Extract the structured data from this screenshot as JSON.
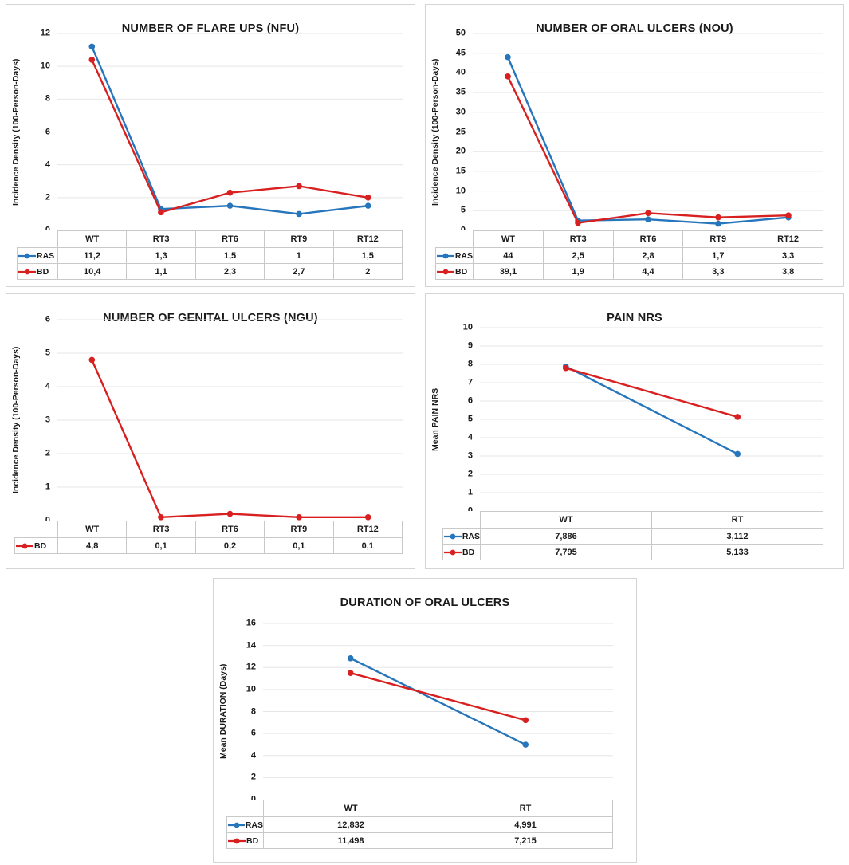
{
  "figure": {
    "description_titles": [
      "NUMBER OF FLARE UPS (NFU)",
      "NUMBER OF ORAL ULCERS (NOU)",
      "NUMBER OF GENITAL ULCERS (NGU)",
      "PAIN NRS",
      "DURATION OF ORAL ULCERS"
    ]
  },
  "colors": {
    "ras_blue": "#2776bb",
    "bd_red": "#d92020",
    "grid": "#e6e6e6",
    "table_border": "#c9c9c9",
    "panel_border": "#d4d4d4",
    "text": "#1a1a1a"
  },
  "chart_data": [
    {
      "id": "nfu",
      "type": "line",
      "title": "NUMBER OF FLARE UPS (NFU)",
      "ylabel": "Incidence Density (100-Person-Days)",
      "ylim": [
        0,
        12
      ],
      "ytick_step": 2,
      "grid": true,
      "legend_position": "table-left",
      "categories": [
        "WT",
        "RT3",
        "RT6",
        "RT9",
        "RT12"
      ],
      "series": [
        {
          "name": "RAS",
          "color": "#2776bb",
          "values": [
            11.2,
            1.3,
            1.5,
            1,
            1.5
          ],
          "labels": [
            "11,2",
            "1,3",
            "1,5",
            "1",
            "1,5"
          ]
        },
        {
          "name": "BD",
          "color": "#d92020",
          "values": [
            10.4,
            1.1,
            2.3,
            2.7,
            2
          ],
          "labels": [
            "10,4",
            "1,1",
            "2,3",
            "2,7",
            "2"
          ]
        }
      ]
    },
    {
      "id": "nou",
      "type": "line",
      "title": "NUMBER OF ORAL ULCERS (NOU)",
      "ylabel": "Incidence Density (100-Person-Days)",
      "ylim": [
        0,
        50
      ],
      "ytick_step": 5,
      "grid": true,
      "legend_position": "table-left",
      "categories": [
        "WT",
        "RT3",
        "RT6",
        "RT9",
        "RT12"
      ],
      "series": [
        {
          "name": "RAS",
          "color": "#2776bb",
          "values": [
            44,
            2.5,
            2.8,
            1.7,
            3.3
          ],
          "labels": [
            "44",
            "2,5",
            "2,8",
            "1,7",
            "3,3"
          ]
        },
        {
          "name": "BD",
          "color": "#d92020",
          "values": [
            39.1,
            1.9,
            4.4,
            3.3,
            3.8
          ],
          "labels": [
            "39,1",
            "1,9",
            "4,4",
            "3,3",
            "3,8"
          ]
        }
      ]
    },
    {
      "id": "ngu",
      "type": "line",
      "title": "NUMBER OF GENITAL ULCERS (NGU)",
      "ylabel": "Incidence Density (100-Person-Days)",
      "ylim": [
        0,
        6
      ],
      "ytick_step": 1,
      "grid": true,
      "legend_position": "table-left",
      "categories": [
        "WT",
        "RT3",
        "RT6",
        "RT9",
        "RT12"
      ],
      "series": [
        {
          "name": "BD",
          "color": "#d92020",
          "values": [
            4.8,
            0.1,
            0.2,
            0.1,
            0.1
          ],
          "labels": [
            "4,8",
            "0,1",
            "0,2",
            "0,1",
            "0,1"
          ]
        }
      ]
    },
    {
      "id": "pain",
      "type": "line",
      "title": "PAIN NRS",
      "ylabel": "Mean PAIN NRS",
      "ylim": [
        0,
        10
      ],
      "ytick_step": 1,
      "grid": true,
      "legend_position": "table-left",
      "categories": [
        "WT",
        "RT"
      ],
      "series": [
        {
          "name": "RAS",
          "color": "#2776bb",
          "values": [
            7.886,
            3.112
          ],
          "labels": [
            "7,886",
            "3,112"
          ]
        },
        {
          "name": "BD",
          "color": "#d92020",
          "values": [
            7.795,
            5.133
          ],
          "labels": [
            "7,795",
            "5,133"
          ]
        }
      ]
    },
    {
      "id": "dur",
      "type": "line",
      "title": "DURATION OF ORAL ULCERS",
      "ylabel": "Mean DURATION (Days)",
      "ylim": [
        0,
        16
      ],
      "ytick_step": 2,
      "grid": true,
      "legend_position": "table-left",
      "categories": [
        "WT",
        "RT"
      ],
      "series": [
        {
          "name": "RAS",
          "color": "#2776bb",
          "values": [
            12.832,
            4.991
          ],
          "labels": [
            "12,832",
            "4,991"
          ]
        },
        {
          "name": "BD",
          "color": "#d92020",
          "values": [
            11.498,
            7.215
          ],
          "labels": [
            "11,498",
            "7,215"
          ]
        }
      ]
    }
  ]
}
